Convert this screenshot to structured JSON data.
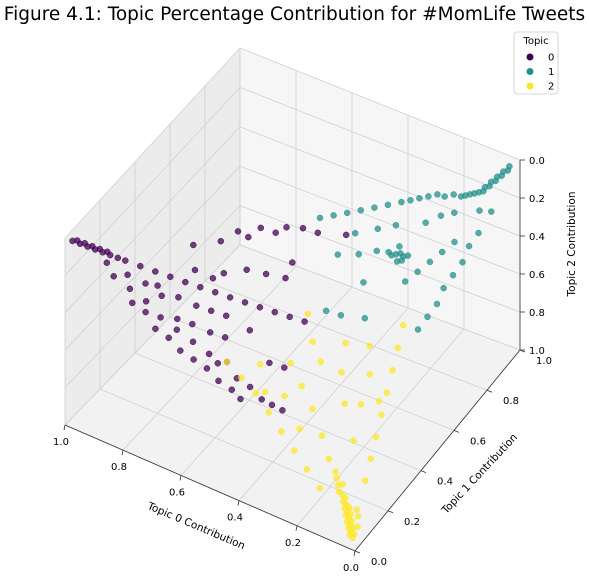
{
  "chart_data": {
    "type": "scatter",
    "projection": "3d",
    "title": "Figure 4.1: Topic Percentage Contribution for #MomLife Tweets",
    "xlabel": "Topic 0 Contribution",
    "ylabel": "Topic 1 Contribution",
    "zlabel": "Topic 2 Contribution",
    "xlim": [
      0.0,
      1.0
    ],
    "ylim": [
      0.0,
      1.0
    ],
    "zlim": [
      1.0,
      0.0
    ],
    "x_ticks": [
      "1.0",
      "0.8",
      "0.6",
      "0.4",
      "0.2",
      "0.0"
    ],
    "y_ticks": [
      "0.0",
      "0.2",
      "0.4",
      "0.6",
      "0.8",
      "1.0"
    ],
    "z_ticks": [
      "0.0",
      "0.2",
      "0.4",
      "0.6",
      "0.8",
      "1.0"
    ],
    "grid": true,
    "legend": {
      "title": "Topic",
      "placement": "top-right"
    },
    "series": [
      {
        "name": "0",
        "color": "#440154",
        "points": [
          [
            0.98,
            0.01,
            0.01
          ],
          [
            0.97,
            0.02,
            0.01
          ],
          [
            0.96,
            0.02,
            0.02
          ],
          [
            0.95,
            0.03,
            0.02
          ],
          [
            0.94,
            0.03,
            0.03
          ],
          [
            0.93,
            0.04,
            0.03
          ],
          [
            0.92,
            0.04,
            0.04
          ],
          [
            0.91,
            0.05,
            0.04
          ],
          [
            0.9,
            0.05,
            0.05
          ],
          [
            0.89,
            0.06,
            0.05
          ],
          [
            0.88,
            0.06,
            0.06
          ],
          [
            0.86,
            0.07,
            0.07
          ],
          [
            0.84,
            0.08,
            0.08
          ],
          [
            0.8,
            0.1,
            0.1
          ],
          [
            0.76,
            0.12,
            0.12
          ],
          [
            0.85,
            0.03,
            0.12
          ],
          [
            0.8,
            0.04,
            0.16
          ],
          [
            0.75,
            0.05,
            0.2
          ],
          [
            0.7,
            0.05,
            0.25
          ],
          [
            0.65,
            0.06,
            0.29
          ],
          [
            0.6,
            0.07,
            0.33
          ],
          [
            0.55,
            0.08,
            0.37
          ],
          [
            0.52,
            0.08,
            0.4
          ],
          [
            0.5,
            0.1,
            0.4
          ],
          [
            0.46,
            0.09,
            0.45
          ],
          [
            0.42,
            0.1,
            0.48
          ],
          [
            0.38,
            0.1,
            0.52
          ],
          [
            0.35,
            0.11,
            0.54
          ],
          [
            0.32,
            0.12,
            0.56
          ],
          [
            0.78,
            0.02,
            0.2
          ],
          [
            0.74,
            0.03,
            0.23
          ],
          [
            0.7,
            0.02,
            0.28
          ],
          [
            0.66,
            0.03,
            0.31
          ],
          [
            0.62,
            0.03,
            0.35
          ],
          [
            0.58,
            0.04,
            0.38
          ],
          [
            0.54,
            0.05,
            0.41
          ],
          [
            0.5,
            0.05,
            0.45
          ],
          [
            0.46,
            0.06,
            0.48
          ],
          [
            0.43,
            0.06,
            0.51
          ],
          [
            0.72,
            0.14,
            0.14
          ],
          [
            0.68,
            0.16,
            0.16
          ],
          [
            0.64,
            0.18,
            0.18
          ],
          [
            0.6,
            0.2,
            0.2
          ],
          [
            0.56,
            0.22,
            0.22
          ],
          [
            0.52,
            0.24,
            0.24
          ],
          [
            0.48,
            0.26,
            0.26
          ],
          [
            0.44,
            0.28,
            0.28
          ],
          [
            0.4,
            0.3,
            0.3
          ],
          [
            0.36,
            0.32,
            0.32
          ],
          [
            0.7,
            0.24,
            0.06
          ],
          [
            0.64,
            0.3,
            0.06
          ],
          [
            0.58,
            0.36,
            0.06
          ],
          [
            0.52,
            0.42,
            0.06
          ],
          [
            0.46,
            0.48,
            0.06
          ],
          [
            0.66,
            0.08,
            0.26
          ],
          [
            0.62,
            0.1,
            0.28
          ],
          [
            0.57,
            0.12,
            0.31
          ],
          [
            0.53,
            0.14,
            0.33
          ],
          [
            0.6,
            0.25,
            0.15
          ],
          [
            0.55,
            0.3,
            0.15
          ],
          [
            0.5,
            0.33,
            0.17
          ],
          [
            0.45,
            0.36,
            0.19
          ],
          [
            0.72,
            0.09,
            0.19
          ],
          [
            0.68,
            0.12,
            0.2
          ],
          [
            0.63,
            0.14,
            0.23
          ],
          [
            0.59,
            0.16,
            0.25
          ],
          [
            0.88,
            0.04,
            0.08
          ],
          [
            0.82,
            0.06,
            0.12
          ],
          [
            0.77,
            0.08,
            0.15
          ],
          [
            0.74,
            0.1,
            0.16
          ],
          [
            0.4,
            0.18,
            0.42
          ],
          [
            0.36,
            0.2,
            0.44
          ],
          [
            0.55,
            0.18,
            0.27
          ],
          [
            0.48,
            0.2,
            0.32
          ],
          [
            0.67,
            0.2,
            0.13
          ],
          [
            0.62,
            0.22,
            0.16
          ],
          [
            0.56,
            0.4,
            0.04
          ],
          [
            0.5,
            0.45,
            0.05
          ],
          [
            0.35,
            0.55,
            0.1
          ],
          [
            0.42,
            0.5,
            0.08
          ],
          [
            0.61,
            0.35,
            0.04
          ],
          [
            0.45,
            0.4,
            0.15
          ]
        ]
      },
      {
        "name": "1",
        "color": "#21918c",
        "points": [
          [
            0.02,
            0.97,
            0.01
          ],
          [
            0.02,
            0.96,
            0.02
          ],
          [
            0.03,
            0.95,
            0.02
          ],
          [
            0.03,
            0.94,
            0.03
          ],
          [
            0.04,
            0.93,
            0.03
          ],
          [
            0.04,
            0.92,
            0.04
          ],
          [
            0.05,
            0.91,
            0.04
          ],
          [
            0.05,
            0.9,
            0.05
          ],
          [
            0.06,
            0.89,
            0.05
          ],
          [
            0.06,
            0.88,
            0.06
          ],
          [
            0.07,
            0.87,
            0.06
          ],
          [
            0.08,
            0.86,
            0.06
          ],
          [
            0.09,
            0.85,
            0.06
          ],
          [
            0.1,
            0.84,
            0.06
          ],
          [
            0.11,
            0.83,
            0.06
          ],
          [
            0.13,
            0.82,
            0.05
          ],
          [
            0.15,
            0.8,
            0.05
          ],
          [
            0.17,
            0.79,
            0.04
          ],
          [
            0.19,
            0.77,
            0.04
          ],
          [
            0.21,
            0.75,
            0.04
          ],
          [
            0.23,
            0.73,
            0.04
          ],
          [
            0.25,
            0.71,
            0.04
          ],
          [
            0.28,
            0.68,
            0.04
          ],
          [
            0.31,
            0.65,
            0.04
          ],
          [
            0.34,
            0.62,
            0.04
          ],
          [
            0.37,
            0.59,
            0.04
          ],
          [
            0.4,
            0.56,
            0.04
          ],
          [
            0.43,
            0.53,
            0.04
          ],
          [
            0.03,
            0.8,
            0.17
          ],
          [
            0.04,
            0.76,
            0.2
          ],
          [
            0.04,
            0.72,
            0.24
          ],
          [
            0.05,
            0.68,
            0.27
          ],
          [
            0.06,
            0.64,
            0.3
          ],
          [
            0.06,
            0.6,
            0.34
          ],
          [
            0.07,
            0.56,
            0.37
          ],
          [
            0.08,
            0.52,
            0.4
          ],
          [
            0.2,
            0.62,
            0.18
          ],
          [
            0.19,
            0.62,
            0.19
          ],
          [
            0.21,
            0.61,
            0.18
          ],
          [
            0.22,
            0.6,
            0.18
          ],
          [
            0.18,
            0.63,
            0.19
          ],
          [
            0.23,
            0.6,
            0.17
          ],
          [
            0.2,
            0.6,
            0.2
          ],
          [
            0.19,
            0.61,
            0.2
          ],
          [
            0.21,
            0.63,
            0.16
          ],
          [
            0.1,
            0.7,
            0.2
          ],
          [
            0.12,
            0.66,
            0.22
          ],
          [
            0.14,
            0.62,
            0.24
          ],
          [
            0.16,
            0.58,
            0.26
          ],
          [
            0.22,
            0.44,
            0.34
          ],
          [
            0.28,
            0.4,
            0.32
          ],
          [
            0.32,
            0.38,
            0.3
          ],
          [
            0.26,
            0.5,
            0.24
          ],
          [
            0.08,
            0.74,
            0.18
          ],
          [
            0.11,
            0.79,
            0.1
          ],
          [
            0.14,
            0.76,
            0.1
          ],
          [
            0.17,
            0.72,
            0.11
          ],
          [
            0.26,
            0.58,
            0.16
          ],
          [
            0.3,
            0.54,
            0.16
          ],
          [
            0.35,
            0.5,
            0.15
          ],
          [
            0.05,
            0.84,
            0.11
          ],
          [
            0.02,
            0.86,
            0.12
          ],
          [
            0.24,
            0.66,
            0.1
          ],
          [
            0.28,
            0.62,
            0.1
          ],
          [
            0.33,
            0.57,
            0.1
          ]
        ]
      },
      {
        "name": "2",
        "color": "#fde725",
        "points": [
          [
            0.02,
            0.02,
            0.96
          ],
          [
            0.02,
            0.03,
            0.95
          ],
          [
            0.03,
            0.02,
            0.95
          ],
          [
            0.03,
            0.03,
            0.94
          ],
          [
            0.04,
            0.03,
            0.93
          ],
          [
            0.03,
            0.04,
            0.93
          ],
          [
            0.04,
            0.04,
            0.92
          ],
          [
            0.05,
            0.04,
            0.91
          ],
          [
            0.04,
            0.05,
            0.91
          ],
          [
            0.05,
            0.05,
            0.9
          ],
          [
            0.06,
            0.05,
            0.89
          ],
          [
            0.05,
            0.06,
            0.89
          ],
          [
            0.06,
            0.06,
            0.88
          ],
          [
            0.07,
            0.06,
            0.87
          ],
          [
            0.06,
            0.07,
            0.87
          ],
          [
            0.07,
            0.07,
            0.86
          ],
          [
            0.08,
            0.07,
            0.85
          ],
          [
            0.08,
            0.08,
            0.84
          ],
          [
            0.09,
            0.08,
            0.83
          ],
          [
            0.1,
            0.08,
            0.82
          ],
          [
            0.1,
            0.1,
            0.8
          ],
          [
            0.11,
            0.09,
            0.8
          ],
          [
            0.12,
            0.1,
            0.78
          ],
          [
            0.13,
            0.11,
            0.76
          ],
          [
            0.03,
            0.07,
            0.9
          ],
          [
            0.02,
            0.05,
            0.93
          ],
          [
            0.04,
            0.08,
            0.88
          ],
          [
            0.15,
            0.05,
            0.8
          ],
          [
            0.2,
            0.06,
            0.74
          ],
          [
            0.25,
            0.07,
            0.68
          ],
          [
            0.3,
            0.08,
            0.62
          ],
          [
            0.35,
            0.09,
            0.56
          ],
          [
            0.4,
            0.1,
            0.5
          ],
          [
            0.45,
            0.1,
            0.45
          ],
          [
            0.5,
            0.1,
            0.4
          ],
          [
            0.05,
            0.15,
            0.8
          ],
          [
            0.06,
            0.2,
            0.74
          ],
          [
            0.07,
            0.25,
            0.68
          ],
          [
            0.08,
            0.3,
            0.62
          ],
          [
            0.09,
            0.35,
            0.56
          ],
          [
            0.1,
            0.4,
            0.5
          ],
          [
            0.11,
            0.45,
            0.44
          ],
          [
            0.12,
            0.5,
            0.38
          ],
          [
            0.2,
            0.15,
            0.65
          ],
          [
            0.25,
            0.18,
            0.57
          ],
          [
            0.3,
            0.2,
            0.5
          ],
          [
            0.35,
            0.22,
            0.43
          ],
          [
            0.18,
            0.25,
            0.57
          ],
          [
            0.22,
            0.3,
            0.48
          ],
          [
            0.15,
            0.35,
            0.5
          ],
          [
            0.28,
            0.28,
            0.44
          ],
          [
            0.12,
            0.2,
            0.68
          ],
          [
            0.16,
            0.12,
            0.72
          ],
          [
            0.38,
            0.12,
            0.5
          ],
          [
            0.33,
            0.15,
            0.52
          ],
          [
            0.42,
            0.16,
            0.42
          ],
          [
            0.18,
            0.4,
            0.42
          ],
          [
            0.24,
            0.36,
            0.4
          ],
          [
            0.14,
            0.28,
            0.58
          ],
          [
            0.26,
            0.12,
            0.62
          ],
          [
            0.32,
            0.3,
            0.38
          ],
          [
            0.36,
            0.34,
            0.3
          ],
          [
            0.1,
            0.32,
            0.58
          ]
        ]
      }
    ]
  }
}
